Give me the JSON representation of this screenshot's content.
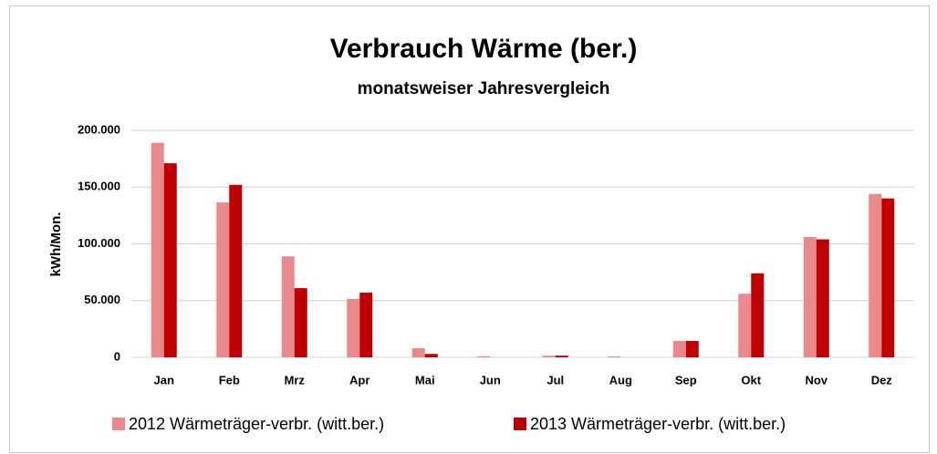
{
  "chart_data": {
    "type": "bar",
    "title": "Verbrauch Wärme (ber.)",
    "subtitle": "monatsweiser Jahresvergleich",
    "y_label": "kWh/Mon.",
    "categories": [
      "Jan",
      "Feb",
      "Mrz",
      "Apr",
      "Mai",
      "Jun",
      "Jul",
      "Aug",
      "Sep",
      "Okt",
      "Nov",
      "Dez"
    ],
    "series": [
      {
        "name": "2012 Wärmeträger-verbr. (witt.ber.)",
        "color": "#e8898b",
        "values": [
          189000,
          136500,
          89000,
          51500,
          8000,
          1000,
          1500,
          800,
          14500,
          56000,
          106000,
          144000
        ]
      },
      {
        "name": "2013 Wärmeträger-verbr. (witt.ber.)",
        "color": "#c00000",
        "values": [
          171000,
          152000,
          61000,
          57000,
          3000,
          0,
          1500,
          0,
          14500,
          74000,
          104000,
          140000
        ]
      }
    ],
    "ylim": [
      0,
      200000
    ],
    "yticks": [
      0,
      {
        "value": 50000,
        "label": "50.000"
      },
      {
        "value": 100000,
        "label": "100.000"
      },
      {
        "value": 150000,
        "label": "150.000"
      },
      {
        "value": 200000,
        "label": "200.000"
      }
    ],
    "grid": true,
    "legend": "bottom"
  }
}
